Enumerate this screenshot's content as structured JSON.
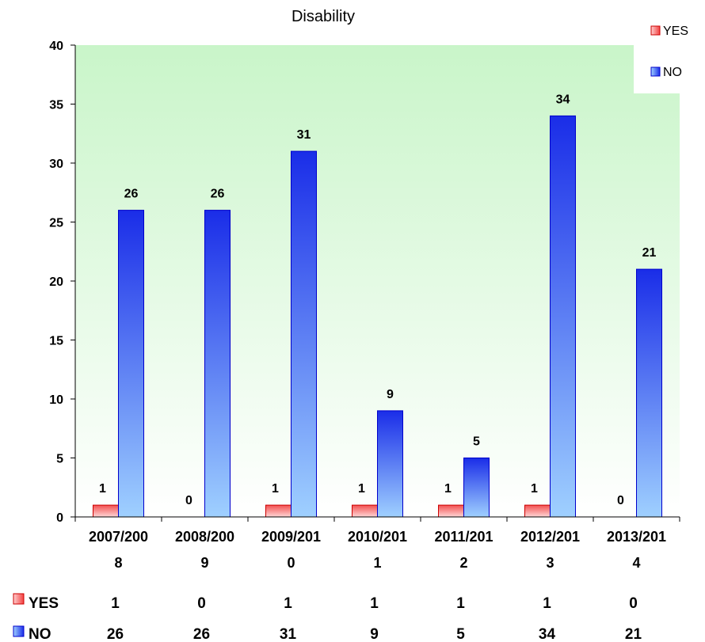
{
  "chart_data": {
    "type": "bar",
    "title": "Disability",
    "categories": [
      [
        "2007/200",
        "8"
      ],
      [
        "2008/200",
        "9"
      ],
      [
        "2009/201",
        "0"
      ],
      [
        "2010/201",
        "1"
      ],
      [
        "2011/201",
        "2"
      ],
      [
        "2012/201",
        "3"
      ],
      [
        "2013/201",
        "4"
      ]
    ],
    "series": [
      {
        "name": "YES",
        "values": [
          1,
          0,
          1,
          1,
          1,
          1,
          0
        ],
        "color": "#e83030"
      },
      {
        "name": "NO",
        "values": [
          26,
          26,
          31,
          9,
          5,
          34,
          21
        ],
        "color": "#2233ee"
      }
    ],
    "ylim": [
      0,
      40
    ],
    "yticks": [
      0,
      5,
      10,
      15,
      20,
      25,
      30,
      35,
      40
    ],
    "data_labels": true,
    "legend": "top-right",
    "data_table": true,
    "plot_background": "green-to-white gradient"
  }
}
